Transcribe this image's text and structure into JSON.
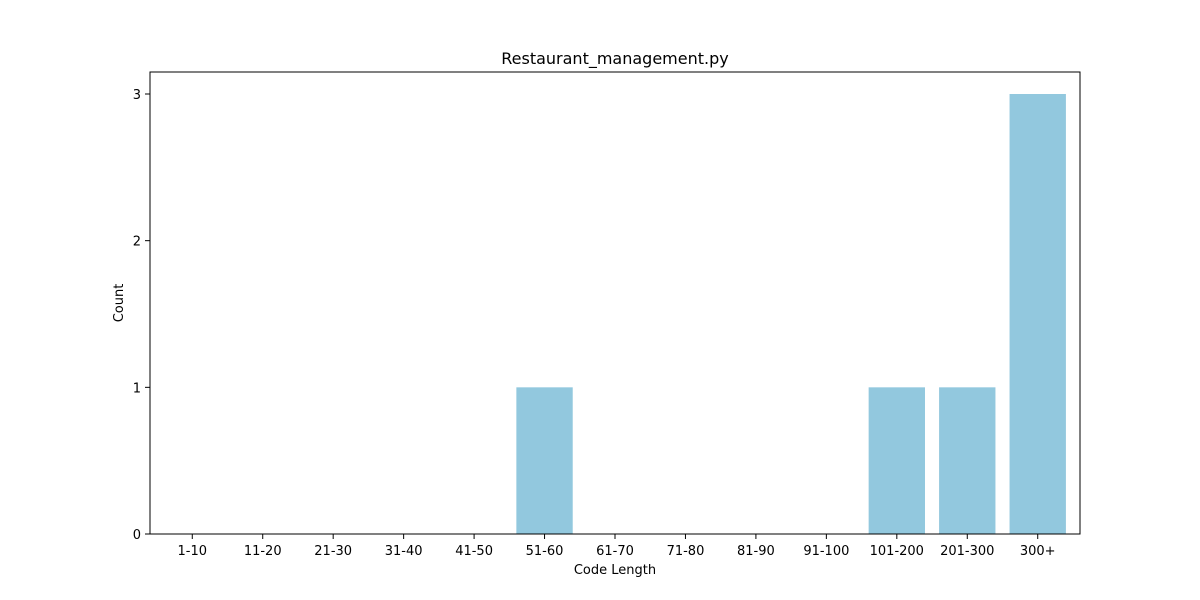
{
  "chart_data": {
    "type": "bar",
    "title": "Restaurant_management.py",
    "xlabel": "Code Length",
    "ylabel": "Count",
    "categories": [
      "1-10",
      "11-20",
      "21-30",
      "31-40",
      "41-50",
      "51-60",
      "61-70",
      "71-80",
      "81-90",
      "91-100",
      "101-200",
      "201-300",
      "300+"
    ],
    "values": [
      0,
      0,
      0,
      0,
      0,
      1,
      0,
      0,
      0,
      0,
      1,
      1,
      3
    ],
    "ylim": [
      0,
      3.15
    ],
    "yticks": [
      0,
      1,
      2,
      3
    ],
    "bar_color": "#92c8de",
    "grid": false,
    "legend": "none"
  }
}
